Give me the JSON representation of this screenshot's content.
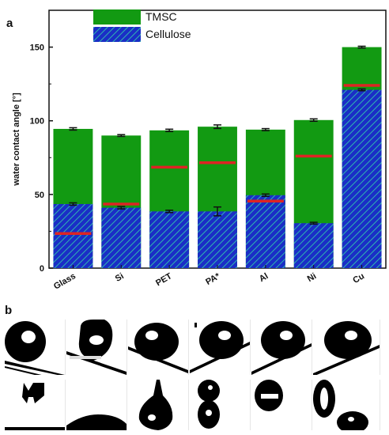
{
  "panel_labels": {
    "a": "a",
    "b": "b"
  },
  "colors": {
    "tmsc": "#129a12",
    "cellulose": "#1a2ec6",
    "cellulose_hatch": "#2fb6b0",
    "red_marker": "#dd2424",
    "error_bar": "#111111"
  },
  "chart_data": {
    "type": "bar",
    "title": "",
    "xlabel": "",
    "ylabel": "water contact angle [°]",
    "ylim": [
      0,
      175
    ],
    "yticks": [
      0,
      50,
      100,
      150
    ],
    "categories": [
      "Glass",
      "Si",
      "PET",
      "PA*",
      "Al",
      "Ni",
      "Cu"
    ],
    "series": [
      {
        "name": "TMSC",
        "values": [
          94.5,
          90,
          93.5,
          96,
          94,
          100.5,
          150
        ],
        "error": [
          0.8,
          0.6,
          0.8,
          1.2,
          0.7,
          0.8,
          0.6
        ]
      },
      {
        "name": "Cellulose",
        "values": [
          43.5,
          41,
          38.5,
          38.5,
          49.5,
          30.5,
          121
        ],
        "error": [
          0.8,
          0.8,
          0.8,
          3.0,
          0.8,
          0.6,
          0.6
        ]
      }
    ],
    "red_markers": [
      23.5,
      43.5,
      68.5,
      71.5,
      45.5,
      76,
      124
    ],
    "legend_position": "top-center",
    "grid": false
  },
  "drop_images": {
    "row1_count": 6,
    "row2_count": 6
  }
}
